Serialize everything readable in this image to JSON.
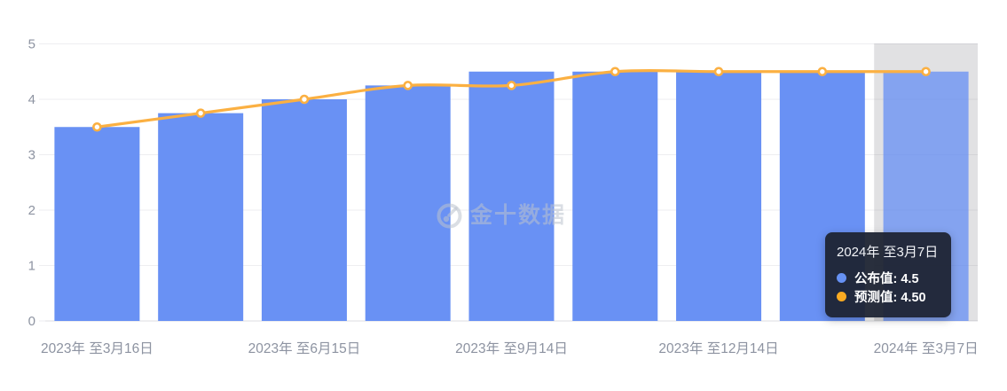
{
  "chart_data": {
    "type": "bar",
    "categories": [
      "2023年 至3月16日",
      "",
      "2023年 至6月15日",
      "",
      "2023年 至9月14日",
      "",
      "2023年 至12月14日",
      "",
      "2024年 至3月7日"
    ],
    "series": [
      {
        "name": "公布值",
        "type": "bar",
        "color": "#6991f4",
        "values": [
          3.5,
          3.75,
          4.0,
          4.25,
          4.5,
          4.5,
          4.5,
          4.5,
          4.5
        ]
      },
      {
        "name": "预测值",
        "type": "line",
        "color": "#fbb042",
        "values": [
          3.5,
          3.75,
          4.0,
          4.25,
          4.25,
          4.5,
          4.5,
          4.5,
          4.5
        ]
      }
    ],
    "ylim": [
      0,
      5
    ],
    "y_ticks": [
      0,
      1,
      2,
      3,
      4,
      5
    ],
    "grid": true,
    "legend_position": "none",
    "highlighted_category_index": 8
  },
  "tooltip": {
    "title": "2024年 至3月7日",
    "rows": [
      {
        "marker_color": "#6691f3",
        "text": "公布值: 4.5"
      },
      {
        "marker_color": "#fbab22",
        "text": "预测值: 4.50"
      }
    ]
  },
  "watermark": {
    "text": "金十数据"
  },
  "colors": {
    "bar": "#6991f4",
    "line": "#fbb042",
    "marker_fill": "#ffffff",
    "axis_text": "#8d93a1",
    "grid_line": "rgba(123,127,140,0.13)",
    "base_line": "rgba(123,127,140,0.26)",
    "highlight_band": "#e1e1e3",
    "tooltip_bg": "#1d2433"
  }
}
